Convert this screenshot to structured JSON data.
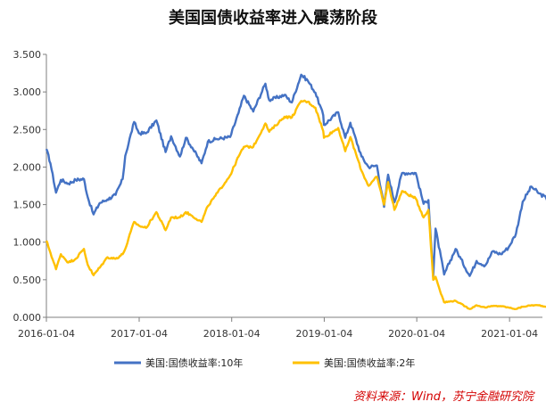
{
  "title": "美国国债收益率进入震荡阶段",
  "source": "资料来源：Wind，苏宁金融研究院",
  "colors": {
    "series_10y": "#4472C4",
    "series_2y": "#FFC000",
    "axis": "#7f7f7f",
    "text": "#333333",
    "source": "#d40000"
  },
  "chart_data": {
    "type": "line",
    "title": "美国国债收益率进入震荡阶段",
    "xlabel": "",
    "ylabel": "",
    "ylim": [
      0,
      3.5
    ],
    "y_ticks": [
      "0.000",
      "0.500",
      "1.000",
      "1.500",
      "2.000",
      "2.500",
      "3.000",
      "3.500"
    ],
    "x_ticks": [
      "2016-01-04",
      "2017-01-04",
      "2018-01-04",
      "2019-01-04",
      "2020-01-04",
      "2021-01-04"
    ],
    "x_range": [
      "2016-01-04",
      "2021-06-30"
    ],
    "legend_position": "bottom",
    "grid": false,
    "series": [
      {
        "name": "美国:国债收益率:10年",
        "color": "#4472C4",
        "points": [
          [
            "2016-01-04",
            2.24
          ],
          [
            "2016-01-20",
            2.05
          ],
          [
            "2016-02-11",
            1.66
          ],
          [
            "2016-03-01",
            1.83
          ],
          [
            "2016-03-31",
            1.78
          ],
          [
            "2016-04-29",
            1.83
          ],
          [
            "2016-05-31",
            1.84
          ],
          [
            "2016-06-15",
            1.6
          ],
          [
            "2016-07-08",
            1.37
          ],
          [
            "2016-08-01",
            1.52
          ],
          [
            "2016-09-01",
            1.57
          ],
          [
            "2016-10-03",
            1.63
          ],
          [
            "2016-10-31",
            1.84
          ],
          [
            "2016-11-10",
            2.15
          ],
          [
            "2016-12-15",
            2.6
          ],
          [
            "2017-01-03",
            2.45
          ],
          [
            "2017-01-31",
            2.45
          ],
          [
            "2017-03-13",
            2.62
          ],
          [
            "2017-04-18",
            2.2
          ],
          [
            "2017-05-10",
            2.41
          ],
          [
            "2017-06-14",
            2.14
          ],
          [
            "2017-07-07",
            2.39
          ],
          [
            "2017-08-01",
            2.26
          ],
          [
            "2017-09-07",
            2.05
          ],
          [
            "2017-10-02",
            2.34
          ],
          [
            "2017-11-01",
            2.37
          ],
          [
            "2017-12-29",
            2.4
          ],
          [
            "2018-01-31",
            2.72
          ],
          [
            "2018-02-21",
            2.95
          ],
          [
            "2018-03-30",
            2.74
          ],
          [
            "2018-05-17",
            3.11
          ],
          [
            "2018-06-01",
            2.89
          ],
          [
            "2018-07-31",
            2.96
          ],
          [
            "2018-08-29",
            2.86
          ],
          [
            "2018-10-05",
            3.23
          ],
          [
            "2018-10-31",
            3.15
          ],
          [
            "2018-11-30",
            2.99
          ],
          [
            "2018-12-31",
            2.69
          ],
          [
            "2019-01-03",
            2.56
          ],
          [
            "2019-02-28",
            2.73
          ],
          [
            "2019-03-28",
            2.39
          ],
          [
            "2019-04-17",
            2.59
          ],
          [
            "2019-05-31",
            2.14
          ],
          [
            "2019-06-28",
            2.0
          ],
          [
            "2019-07-31",
            2.02
          ],
          [
            "2019-08-28",
            1.47
          ],
          [
            "2019-09-13",
            1.9
          ],
          [
            "2019-10-08",
            1.53
          ],
          [
            "2019-11-07",
            1.92
          ],
          [
            "2019-12-31",
            1.92
          ],
          [
            "2020-01-31",
            1.51
          ],
          [
            "2020-02-19",
            1.56
          ],
          [
            "2020-03-09",
            0.54
          ],
          [
            "2020-03-18",
            1.18
          ],
          [
            "2020-04-21",
            0.57
          ],
          [
            "2020-06-05",
            0.91
          ],
          [
            "2020-07-31",
            0.55
          ],
          [
            "2020-08-27",
            0.75
          ],
          [
            "2020-09-30",
            0.69
          ],
          [
            "2020-10-30",
            0.88
          ],
          [
            "2020-11-30",
            0.84
          ],
          [
            "2020-12-31",
            0.93
          ],
          [
            "2021-01-29",
            1.11
          ],
          [
            "2021-02-25",
            1.54
          ],
          [
            "2021-03-31",
            1.74
          ],
          [
            "2021-04-30",
            1.65
          ],
          [
            "2021-05-28",
            1.59
          ],
          [
            "2021-06-15",
            1.5
          ],
          [
            "2021-06-30",
            1.65
          ]
        ]
      },
      {
        "name": "美国:国债收益率:2年",
        "color": "#FFC000",
        "points": [
          [
            "2016-01-04",
            1.02
          ],
          [
            "2016-01-20",
            0.86
          ],
          [
            "2016-02-11",
            0.64
          ],
          [
            "2016-03-01",
            0.84
          ],
          [
            "2016-03-31",
            0.73
          ],
          [
            "2016-04-29",
            0.78
          ],
          [
            "2016-05-31",
            0.91
          ],
          [
            "2016-06-15",
            0.7
          ],
          [
            "2016-07-08",
            0.56
          ],
          [
            "2016-08-01",
            0.66
          ],
          [
            "2016-09-01",
            0.8
          ],
          [
            "2016-10-03",
            0.78
          ],
          [
            "2016-10-31",
            0.84
          ],
          [
            "2016-11-10",
            0.91
          ],
          [
            "2016-12-15",
            1.27
          ],
          [
            "2017-01-03",
            1.22
          ],
          [
            "2017-01-31",
            1.19
          ],
          [
            "2017-03-13",
            1.4
          ],
          [
            "2017-04-18",
            1.16
          ],
          [
            "2017-05-10",
            1.33
          ],
          [
            "2017-06-14",
            1.33
          ],
          [
            "2017-07-07",
            1.4
          ],
          [
            "2017-08-01",
            1.35
          ],
          [
            "2017-09-07",
            1.27
          ],
          [
            "2017-10-02",
            1.48
          ],
          [
            "2017-11-01",
            1.62
          ],
          [
            "2017-12-29",
            1.89
          ],
          [
            "2018-01-31",
            2.14
          ],
          [
            "2018-02-21",
            2.27
          ],
          [
            "2018-03-30",
            2.27
          ],
          [
            "2018-05-17",
            2.58
          ],
          [
            "2018-06-01",
            2.47
          ],
          [
            "2018-07-31",
            2.67
          ],
          [
            "2018-08-29",
            2.66
          ],
          [
            "2018-10-05",
            2.88
          ],
          [
            "2018-10-31",
            2.87
          ],
          [
            "2018-11-30",
            2.79
          ],
          [
            "2018-12-31",
            2.48
          ],
          [
            "2019-01-03",
            2.39
          ],
          [
            "2019-02-28",
            2.52
          ],
          [
            "2019-03-28",
            2.21
          ],
          [
            "2019-04-17",
            2.4
          ],
          [
            "2019-05-31",
            1.95
          ],
          [
            "2019-06-28",
            1.75
          ],
          [
            "2019-07-31",
            1.87
          ],
          [
            "2019-08-28",
            1.5
          ],
          [
            "2019-09-13",
            1.8
          ],
          [
            "2019-10-08",
            1.43
          ],
          [
            "2019-11-07",
            1.68
          ],
          [
            "2019-12-31",
            1.58
          ],
          [
            "2020-01-31",
            1.33
          ],
          [
            "2020-02-19",
            1.43
          ],
          [
            "2020-03-09",
            0.5
          ],
          [
            "2020-03-18",
            0.54
          ],
          [
            "2020-04-21",
            0.2
          ],
          [
            "2020-06-05",
            0.22
          ],
          [
            "2020-07-31",
            0.11
          ],
          [
            "2020-08-27",
            0.16
          ],
          [
            "2020-09-30",
            0.13
          ],
          [
            "2020-10-30",
            0.15
          ],
          [
            "2020-11-30",
            0.15
          ],
          [
            "2020-12-31",
            0.13
          ],
          [
            "2021-01-29",
            0.11
          ],
          [
            "2021-02-25",
            0.14
          ],
          [
            "2021-03-31",
            0.16
          ],
          [
            "2021-04-30",
            0.16
          ],
          [
            "2021-05-28",
            0.14
          ],
          [
            "2021-06-15",
            0.16
          ],
          [
            "2021-06-30",
            0.25
          ]
        ]
      }
    ]
  }
}
